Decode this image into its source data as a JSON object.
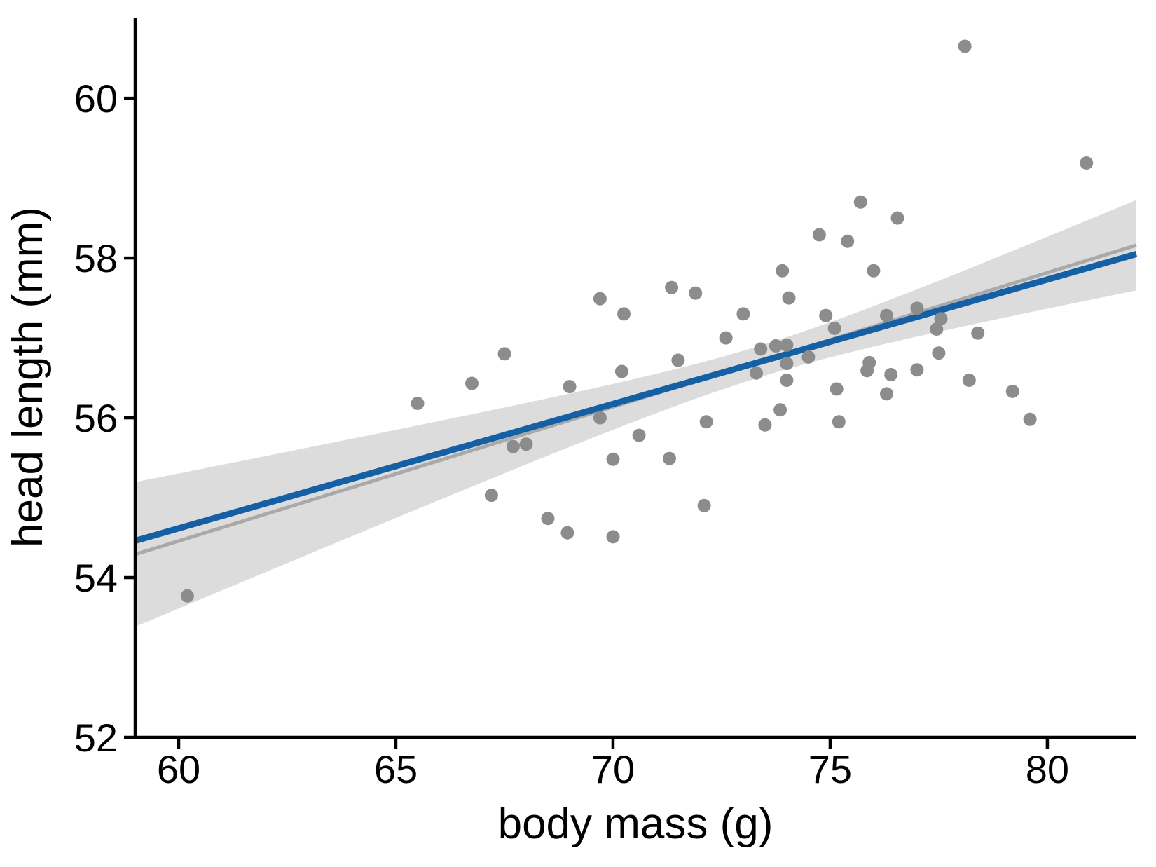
{
  "chart_data": {
    "type": "scatter",
    "title": "",
    "xlabel": "body mass (g)",
    "ylabel": "head length (mm)",
    "xlim": [
      59,
      82.05
    ],
    "ylim": [
      52,
      61.01
    ],
    "x_ticks": [
      60,
      65,
      70,
      75,
      80
    ],
    "y_ticks": [
      52,
      54,
      56,
      58,
      60
    ],
    "grid": false,
    "legend": "none",
    "colors": {
      "point": "#8C8C8C",
      "fit_line": "#1560A4",
      "reference_line": "#A9A9A9",
      "confidence_band": "#DCDCDC",
      "axis": "#000000",
      "background": "#FFFFFF"
    },
    "points": [
      [
        60.2,
        53.77
      ],
      [
        65.5,
        56.18
      ],
      [
        66.75,
        56.43
      ],
      [
        67.2,
        55.03
      ],
      [
        67.5,
        56.8
      ],
      [
        67.7,
        55.64
      ],
      [
        68.0,
        55.67
      ],
      [
        68.5,
        54.74
      ],
      [
        68.95,
        54.56
      ],
      [
        69.0,
        56.39
      ],
      [
        69.7,
        56.0
      ],
      [
        69.7,
        57.49
      ],
      [
        70.0,
        54.51
      ],
      [
        70.0,
        55.48
      ],
      [
        70.2,
        56.58
      ],
      [
        70.25,
        57.3
      ],
      [
        70.6,
        55.78
      ],
      [
        71.3,
        55.49
      ],
      [
        71.35,
        57.63
      ],
      [
        71.5,
        56.72
      ],
      [
        71.9,
        57.56
      ],
      [
        72.1,
        54.9
      ],
      [
        72.15,
        55.95
      ],
      [
        72.6,
        57.0
      ],
      [
        73.0,
        57.3
      ],
      [
        73.3,
        56.56
      ],
      [
        73.4,
        56.86
      ],
      [
        73.5,
        55.91
      ],
      [
        73.75,
        56.9
      ],
      [
        73.85,
        56.1
      ],
      [
        73.9,
        57.84
      ],
      [
        74.0,
        56.47
      ],
      [
        74.0,
        56.68
      ],
      [
        74.0,
        56.91
      ],
      [
        74.05,
        57.5
      ],
      [
        74.5,
        56.76
      ],
      [
        74.75,
        58.29
      ],
      [
        74.9,
        57.28
      ],
      [
        75.1,
        57.12
      ],
      [
        75.15,
        56.36
      ],
      [
        75.2,
        55.95
      ],
      [
        75.4,
        58.21
      ],
      [
        75.7,
        58.7
      ],
      [
        75.85,
        56.59
      ],
      [
        75.9,
        56.69
      ],
      [
        76.0,
        57.84
      ],
      [
        76.3,
        56.3
      ],
      [
        76.3,
        57.28
      ],
      [
        76.4,
        56.54
      ],
      [
        76.55,
        58.5
      ],
      [
        77.0,
        56.6
      ],
      [
        77.0,
        57.37
      ],
      [
        77.45,
        57.11
      ],
      [
        77.5,
        56.81
      ],
      [
        77.55,
        57.24
      ],
      [
        78.1,
        60.65
      ],
      [
        78.2,
        56.47
      ],
      [
        78.4,
        57.06
      ],
      [
        79.2,
        56.33
      ],
      [
        79.6,
        55.98
      ],
      [
        80.9,
        59.19
      ]
    ],
    "fit_line": {
      "x0": 59,
      "y0": 54.46,
      "x1": 82.05,
      "y1": 58.05
    },
    "reference_line": {
      "x0": 59,
      "y0": 54.29,
      "x1": 82.05,
      "y1": 58.16
    },
    "confidence_band": {
      "centered_on": "reference_line",
      "x_mean": 73.4,
      "halfwidth_model_a": 0.0387,
      "halfwidth_model_b": 0.003763,
      "halfwidth_at_left": 0.905,
      "halfwidth_at_min": 0.2,
      "halfwidth_at_right": 0.566
    },
    "point_radius_px": 9.5
  }
}
